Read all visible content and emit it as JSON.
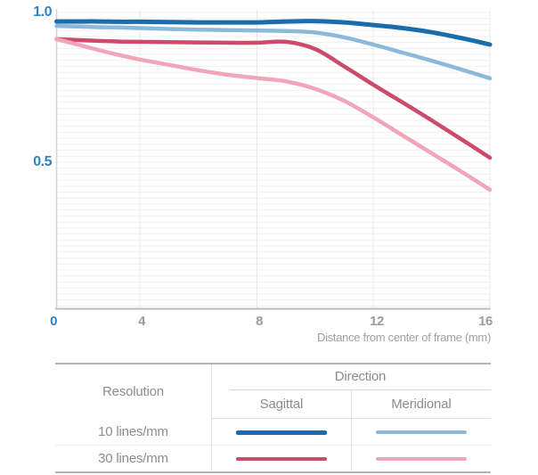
{
  "chart": {
    "y_axis": {
      "labels": [
        "1.0",
        "0.5"
      ]
    },
    "x_axis": {
      "tick_labels": [
        "0",
        "4",
        "8",
        "12",
        "16"
      ],
      "title": "Distance from center of frame (mm)"
    }
  },
  "chart_data": {
    "type": "line",
    "title": "",
    "xlabel": "Distance from center of frame (mm)",
    "ylabel": "",
    "xlim": [
      0,
      16
    ],
    "ylim": [
      0,
      1.0
    ],
    "x_ticks": [
      0,
      4,
      8,
      12,
      16
    ],
    "y_ticks": [
      0.5,
      1.0
    ],
    "grid": true,
    "minor_grid_step": 0.02,
    "legend_position": "bottom-table",
    "x": [
      0,
      1,
      2,
      3,
      4,
      5,
      6,
      7,
      8,
      9,
      10,
      11,
      12,
      13,
      14,
      15,
      16
    ],
    "series": [
      {
        "name": "10 lines/mm Sagittal",
        "color": "#1a6dac",
        "values": [
          0.97,
          0.97,
          0.97,
          0.969,
          0.969,
          0.968,
          0.967,
          0.967,
          0.967,
          0.97,
          0.971,
          0.967,
          0.958,
          0.948,
          0.934,
          0.915,
          0.893
        ]
      },
      {
        "name": "10 lines/mm Meridional",
        "color": "#8cb8da",
        "values": [
          0.955,
          0.953,
          0.951,
          0.95,
          0.948,
          0.945,
          0.943,
          0.941,
          0.94,
          0.938,
          0.933,
          0.917,
          0.893,
          0.866,
          0.839,
          0.81,
          0.78
        ]
      },
      {
        "name": "30 lines/mm Sagittal",
        "color": "#cc4b6c",
        "values": [
          0.911,
          0.908,
          0.905,
          0.903,
          0.902,
          0.901,
          0.9,
          0.899,
          0.899,
          0.902,
          0.878,
          0.82,
          0.759,
          0.7,
          0.64,
          0.578,
          0.515
        ]
      },
      {
        "name": "30 lines/mm Meridional",
        "color": "#f0a6b8",
        "values": [
          0.911,
          0.893,
          0.875,
          0.858,
          0.843,
          0.825,
          0.807,
          0.792,
          0.781,
          0.77,
          0.745,
          0.705,
          0.65,
          0.59,
          0.53,
          0.47,
          0.408
        ]
      }
    ]
  },
  "legend_table": {
    "resolution_header": "Resolution",
    "direction_header": "Direction",
    "sagittal_header": "Sagittal",
    "meridional_header": "Meridional",
    "rows": [
      {
        "label": "10 lines/mm",
        "sagittal_color": "#1a6dac",
        "meridional_color": "#8cb8da"
      },
      {
        "label": "30 lines/mm",
        "sagittal_color": "#cc4b6c",
        "meridional_color": "#f0a6b8"
      }
    ]
  },
  "colors": {
    "axis_label_blue": "#2e84c4",
    "axis_label_gray": "#9c9c9c",
    "axis_line": "#bdbdbd",
    "grid_minor": "#f1f1f1",
    "grid_vertical": "#e8e8e8",
    "table_border_heavy": "#b3b3b3",
    "table_border_light": "#e0e0e0"
  }
}
